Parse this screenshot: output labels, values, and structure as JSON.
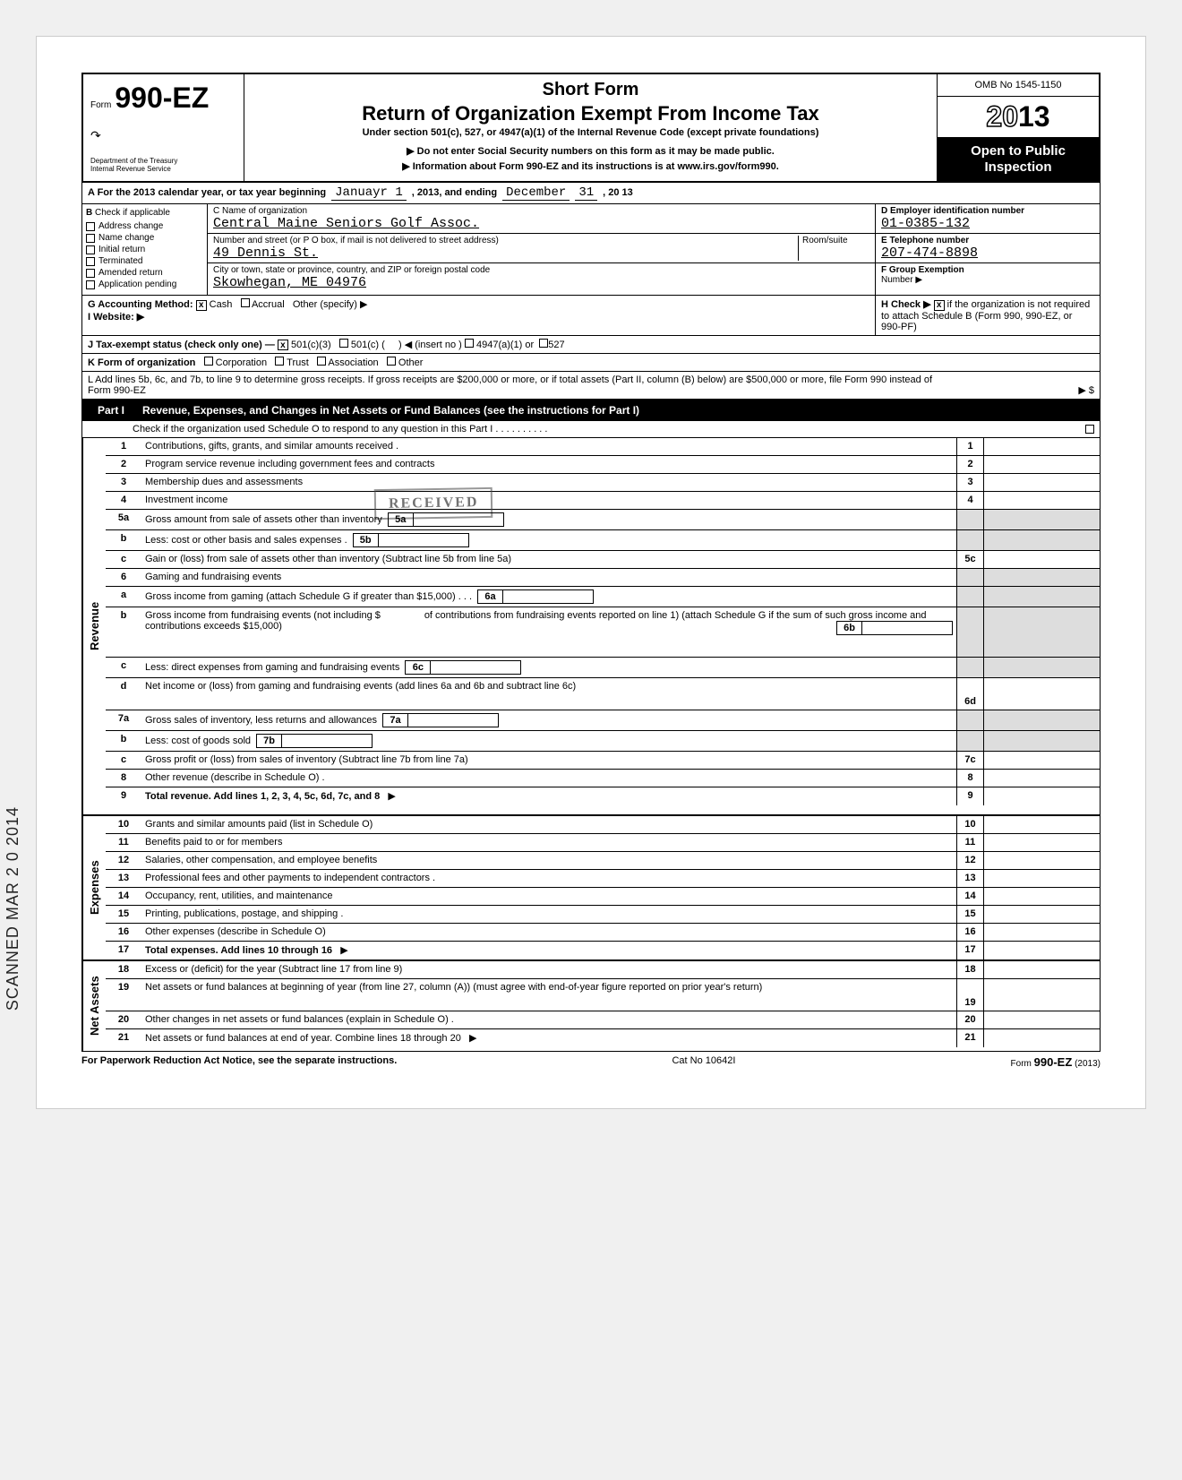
{
  "omb": "OMB No 1545-1150",
  "form_label": "Form",
  "form_number": "990-EZ",
  "short_form": "Short Form",
  "return_title": "Return of Organization Exempt From Income Tax",
  "under_section": "Under section 501(c), 527, or 4947(a)(1) of the Internal Revenue Code (except private foundations)",
  "do_not": "▶ Do not enter Social Security numbers on this form as it may be made public.",
  "info_at": "▶ Information about Form 990-EZ and its instructions is at www.irs.gov/form990.",
  "dept1": "Department of the Treasury",
  "dept2": "Internal Revenue Service",
  "year_prefix": "20",
  "year_suffix": "13",
  "open1": "Open to Public",
  "open2": "Inspection",
  "row_a_label": "A For the 2013 calendar year, or tax year beginning",
  "row_a_begin": "Januayr  1",
  "row_a_mid": ", 2013, and ending",
  "row_a_end_m": "December",
  "row_a_end_d": "31",
  "row_a_end_y": ", 20 13",
  "b_label": "B",
  "b_text": "Check if applicable",
  "b_items": [
    "Address change",
    "Name change",
    "Initial return",
    "Terminated",
    "Amended return",
    "Application pending"
  ],
  "c_label": "C  Name of organization",
  "c_name": "Central Maine Seniors Golf Assoc.",
  "c_street_label": "Number and street (or P O  box, if mail is not delivered to street address)",
  "c_room": "Room/suite",
  "c_street": "49 Dennis St.",
  "c_city_label": "City or town, state or province, country, and ZIP or foreign postal code",
  "c_city": "Skowhegan, ME 04976",
  "d_label": "D Employer identification number",
  "d_ein": "01-0385-132",
  "e_label": "E  Telephone number",
  "e_phone": "207-474-8898",
  "f_label": "F  Group Exemption",
  "f_label2": "Number  ▶",
  "g_label": "G  Accounting Method:",
  "g_cash": "Cash",
  "g_accrual": "Accrual",
  "g_other": "Other (specify) ▶",
  "h_label": "H  Check  ▶",
  "h_text": "if the organization is not required to attach Schedule B (Form 990, 990-EZ, or 990-PF)",
  "i_label": "I   Website: ▶",
  "j_label": "J  Tax-exempt status (check only one) —",
  "j_501c3": "501(c)(3)",
  "j_501c": "501(c) (",
  "j_insert": ") ◀ (insert no )",
  "j_4947": "4947(a)(1) or",
  "j_527": "527",
  "k_label": "K  Form of organization",
  "k_corp": "Corporation",
  "k_trust": "Trust",
  "k_assoc": "Association",
  "k_other": "Other",
  "l_text": "L  Add lines 5b, 6c, and 7b, to line 9 to determine gross receipts. If gross receipts are $200,000 or more, or if total assets (Part II, column (B) below) are $500,000 or more, file Form 990 instead of Form 990-EZ",
  "l_arrow": "▶   $",
  "part1_label": "Part I",
  "part1_title": "Revenue, Expenses, and Changes in Net Assets or Fund Balances (see the instructions for Part I)",
  "part1_check": "Check if the organization used Schedule O to respond to any question in this Part I .   .   .   .   .   .   .   .   .   .",
  "revenue_label": "Revenue",
  "expenses_label": "Expenses",
  "netassets_label": "Net Assets",
  "received_stamp": "RECEIVED",
  "scanned_stamp": "SCANNED MAR 2 0 2014",
  "lines": {
    "1": "Contributions, gifts, grants, and similar amounts received .",
    "2": "Program service revenue including government fees and contracts",
    "3": "Membership dues and assessments",
    "4": "Investment income",
    "5a": "Gross amount from sale of assets other than inventory",
    "5b": "Less: cost or other basis and sales expenses .",
    "5c": "Gain or (loss) from sale of assets other than inventory (Subtract line 5b from line 5a)",
    "6": "Gaming and fundraising events",
    "6a": "Gross income from gaming (attach Schedule G if greater than $15,000) .   .   .",
    "6b_pre": "Gross income from fundraising events (not including  $",
    "6b_post": "of contributions from fundraising events reported on line 1) (attach Schedule G if the sum of such gross income and contributions exceeds $15,000)",
    "6c": "Less: direct expenses from gaming and fundraising events",
    "6d": "Net income or (loss) from gaming and fundraising events (add lines 6a and 6b and subtract line 6c)",
    "7a": "Gross sales of inventory, less returns and allowances",
    "7b": "Less: cost of goods sold",
    "7c": "Gross profit or (loss) from sales of inventory (Subtract line 7b from line 7a)",
    "8": "Other revenue (describe in Schedule O) .",
    "9": "Total revenue. Add lines 1, 2, 3, 4, 5c, 6d, 7c, and 8",
    "10": "Grants and similar amounts paid (list in Schedule O)",
    "11": "Benefits paid to or for members",
    "12": "Salaries, other compensation, and employee benefits",
    "13": "Professional fees and other payments to independent contractors .",
    "14": "Occupancy, rent, utilities, and maintenance",
    "15": "Printing, publications, postage, and shipping .",
    "16": "Other expenses (describe in Schedule O)",
    "17": "Total expenses. Add lines 10 through 16",
    "18": "Excess or (deficit) for the year (Subtract line 17 from line 9)",
    "19": "Net assets or fund balances at beginning of year (from line 27, column (A)) (must agree with end-of-year figure reported on prior year's return)",
    "20": "Other changes in net assets or fund balances (explain in Schedule O) .",
    "21": "Net assets or fund balances at end of year. Combine lines 18 through 20"
  },
  "footer_left": "For Paperwork Reduction Act Notice, see the separate instructions.",
  "footer_center": "Cat  No  10642I",
  "footer_right": "Form 990-EZ (2013)",
  "colors": {
    "black": "#000000",
    "white": "#ffffff",
    "shade": "#dddddd",
    "page_bg": "#f0f0f0"
  }
}
